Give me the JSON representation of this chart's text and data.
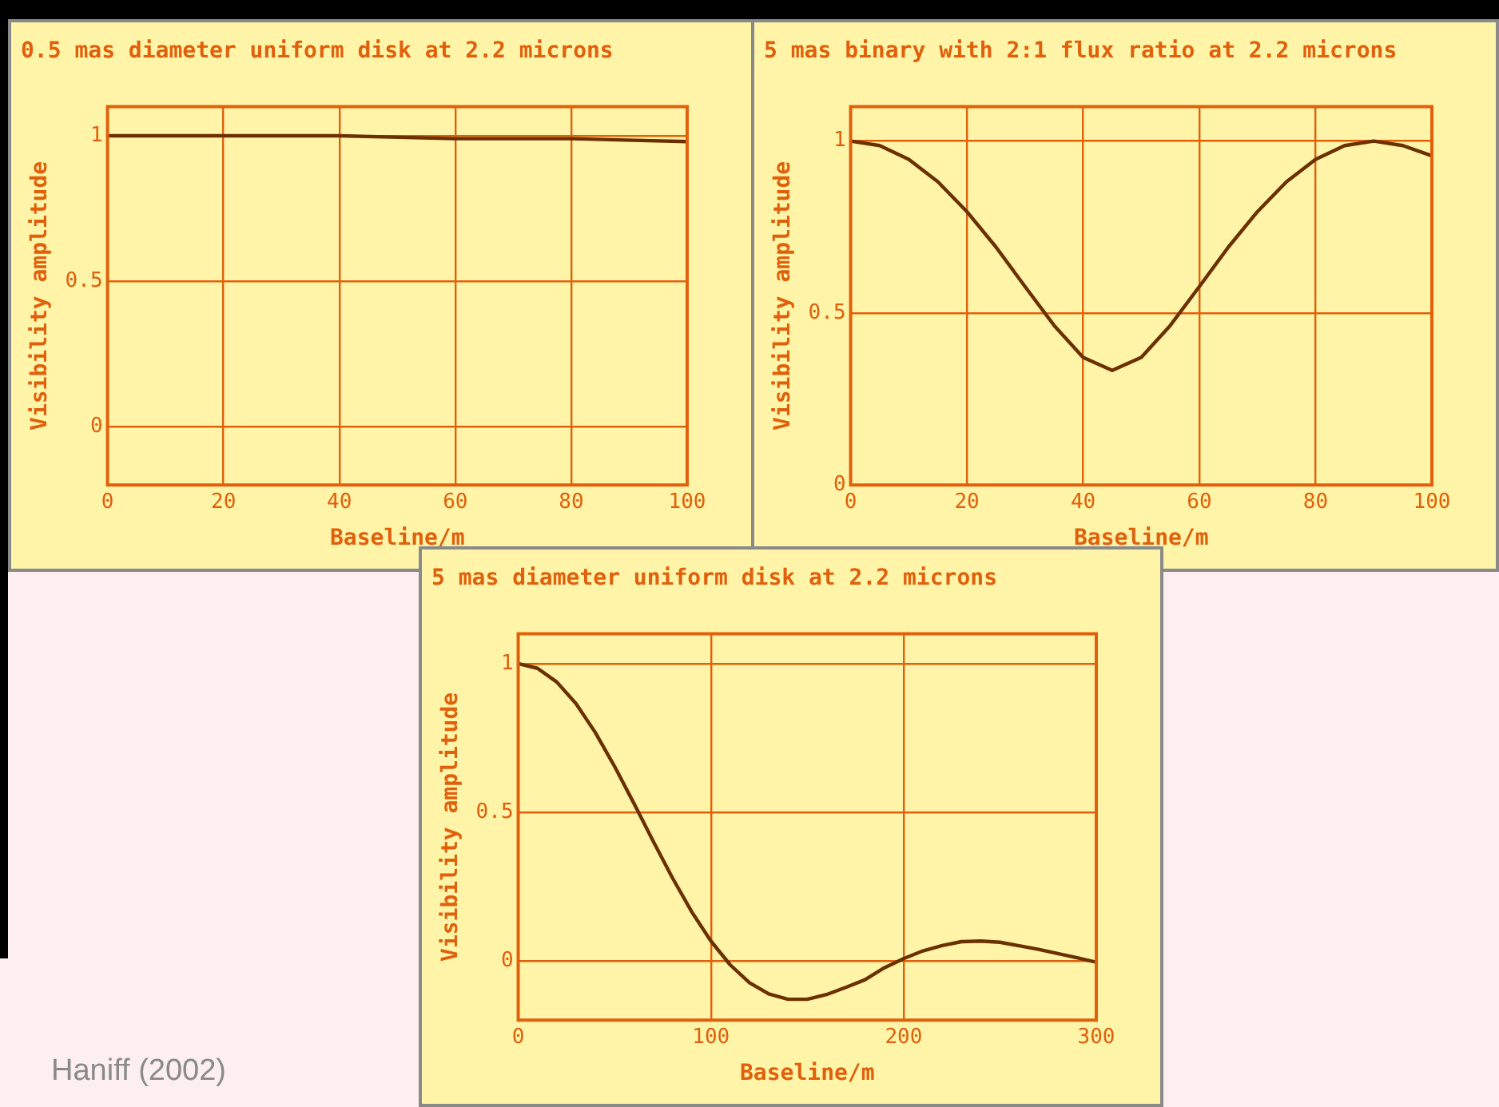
{
  "chart_data": [
    {
      "type": "line",
      "title": "0.5 mas diameter uniform disk at 2.2 microns",
      "xlabel": "Baseline/m",
      "ylabel": "Visibility amplitude",
      "x": [
        0,
        20,
        40,
        60,
        80,
        100
      ],
      "series": [
        {
          "color": "#6b3000",
          "values": [
            1,
            1,
            1,
            0.99,
            0.99,
            0.98
          ]
        }
      ],
      "xlim": [
        0,
        100
      ],
      "xticks": [
        0,
        20,
        40,
        60,
        80,
        100
      ],
      "ylim": [
        -0.2,
        1.1
      ],
      "yticks": [
        0,
        0.5,
        1
      ],
      "grid": true,
      "marker": "none",
      "line_style": "solid"
    },
    {
      "type": "line",
      "title": "5 mas binary with 2:1 flux ratio at 2.2 microns",
      "xlabel": "Baseline/m",
      "ylabel": "Visibility amplitude",
      "x": [
        0,
        5,
        10,
        15,
        20,
        25,
        30,
        35,
        40,
        45,
        50,
        55,
        60,
        65,
        70,
        75,
        80,
        85,
        90,
        95,
        100
      ],
      "series": [
        {
          "color": "#6b3000",
          "values": [
            1,
            0.987,
            0.947,
            0.882,
            0.795,
            0.692,
            0.577,
            0.464,
            0.371,
            0.333,
            0.371,
            0.464,
            0.577,
            0.692,
            0.795,
            0.882,
            0.947,
            0.987,
            1,
            0.987,
            0.957
          ]
        }
      ],
      "xlim": [
        0,
        100
      ],
      "xticks": [
        0,
        20,
        40,
        60,
        80,
        100
      ],
      "ylim": [
        0,
        1.1
      ],
      "yticks": [
        0,
        0.5,
        1
      ],
      "grid": true,
      "marker": "none",
      "line_style": "solid"
    },
    {
      "type": "line",
      "title": "5 mas diameter uniform disk at 2.2 microns",
      "xlabel": "Baseline/m",
      "ylabel": "Visibility amplitude",
      "x": [
        0,
        10,
        20,
        30,
        40,
        50,
        60,
        70,
        80,
        90,
        100,
        110,
        120,
        130,
        140,
        150,
        160,
        170,
        180,
        190,
        200,
        210,
        220,
        230,
        240,
        250,
        260,
        270,
        280,
        290,
        300
      ],
      "series": [
        {
          "color": "#6b3000",
          "values": [
            1,
            0.984,
            0.938,
            0.865,
            0.768,
            0.654,
            0.53,
            0.403,
            0.279,
            0.165,
            0.066,
            -0.014,
            -0.074,
            -0.112,
            -0.13,
            -0.13,
            -0.114,
            -0.09,
            -0.064,
            -0.024,
            0.007,
            0.033,
            0.051,
            0.064,
            0.066,
            0.062,
            0.05,
            0.038,
            0.024,
            0.01,
            -0.005
          ]
        }
      ],
      "xlim": [
        0,
        300
      ],
      "xticks": [
        0,
        100,
        200,
        300
      ],
      "ylim": [
        -0.2,
        1.1
      ],
      "yticks": [
        0,
        0.5,
        1
      ],
      "grid": true,
      "marker": "none",
      "line_style": "solid",
      "annotations": [
        "Haniff (2002)"
      ]
    }
  ]
}
